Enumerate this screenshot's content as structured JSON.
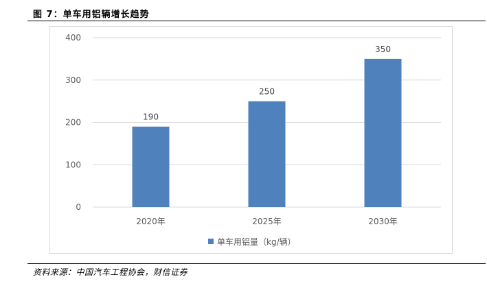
{
  "figure": {
    "title": "图 7：单车用铝辆增长趋势",
    "source": "资料来源：中国汽车工程协会，财信证券"
  },
  "chart_data": {
    "type": "bar",
    "categories": [
      "2020年",
      "2025年",
      "2030年"
    ],
    "series": [
      {
        "name": "单车用铝量（kg/辆）",
        "values": [
          190,
          250,
          350
        ],
        "color": "#4f81bd"
      }
    ],
    "y_ticks": [
      0,
      100,
      200,
      300,
      400
    ],
    "ylim": [
      0,
      400
    ],
    "grid": true,
    "legend_position": "bottom",
    "data_labels": true
  }
}
